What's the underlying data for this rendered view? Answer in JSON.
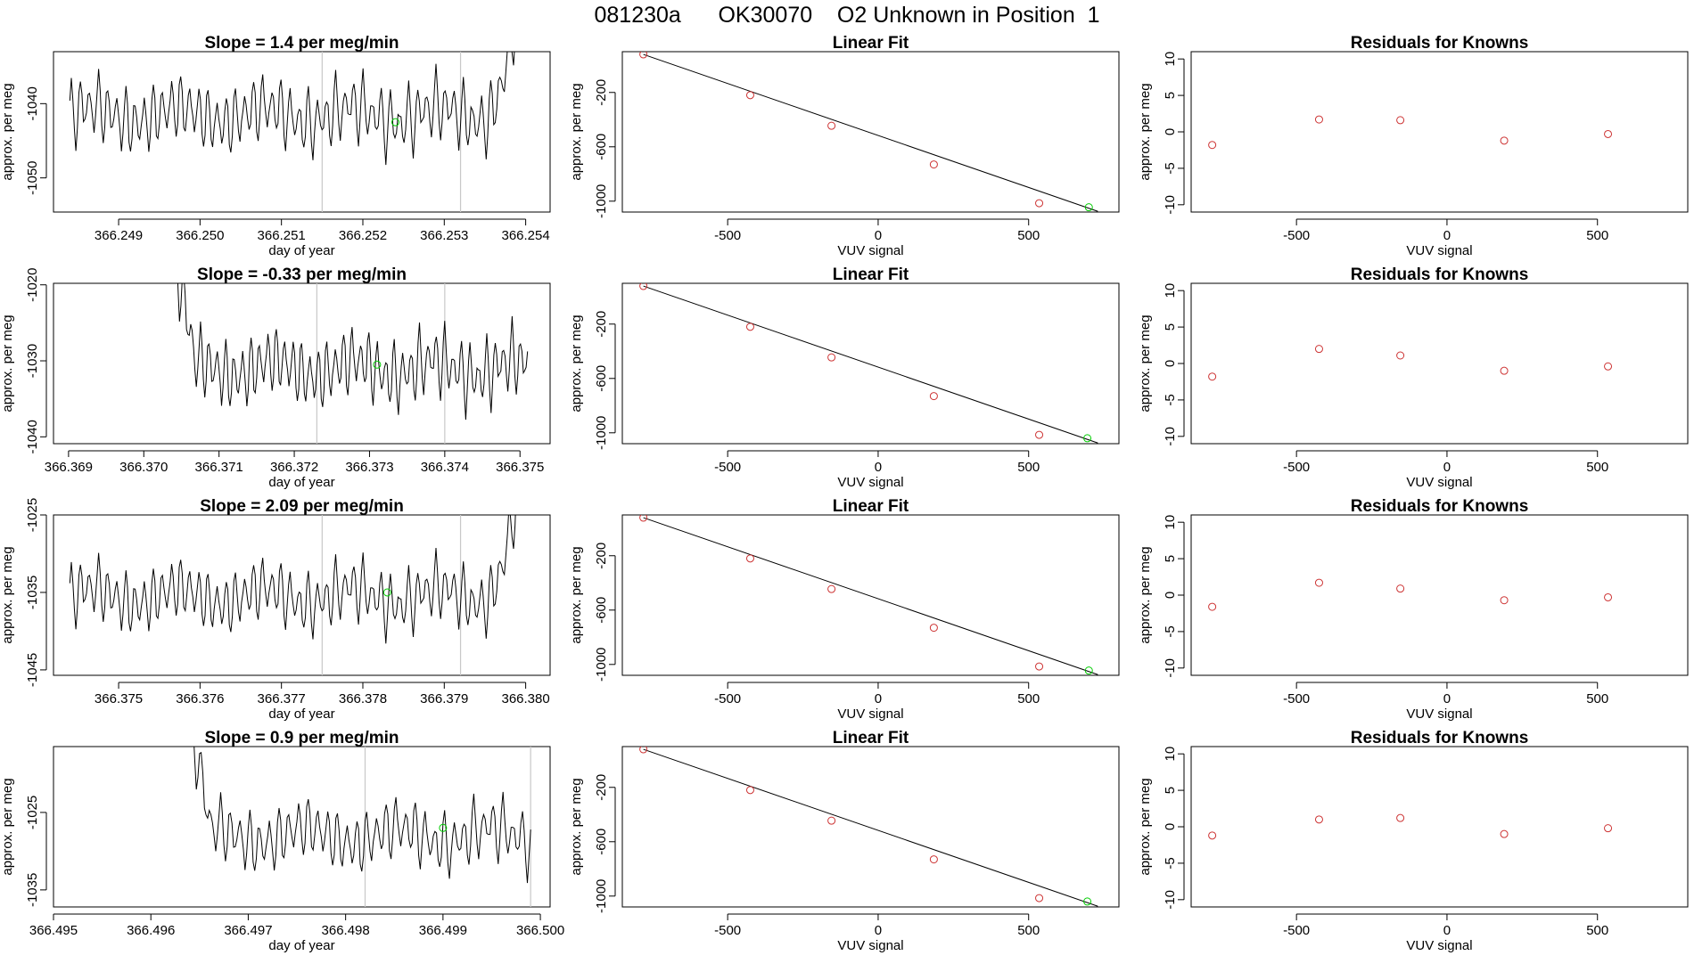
{
  "page_title": "081230a      OK30070    O2 Unknown in Position  1",
  "colors": {
    "trace": "#000000",
    "known": "#cd3333",
    "unknown": "#00cc00",
    "marker": "#c8c8c8"
  },
  "chart_data": [
    {
      "type": "line",
      "title": "Slope =  1.4  per meg/min",
      "xlabel": "day of year",
      "ylabel": "approx. per meg",
      "xlim": [
        366.2482,
        366.2543
      ],
      "ylim": [
        -1054.6,
        -1033.0
      ],
      "xticks": [
        "366.249",
        "366.250",
        "366.251",
        "366.252",
        "366.253",
        "366.254"
      ],
      "yticks": [
        "-1040",
        "-1050"
      ],
      "trace": {
        "x_start": 366.2484,
        "x_end": 366.254,
        "base": -1041.5,
        "amplitude": 4.5,
        "periods": 50,
        "tail_rise": 10
      },
      "markers_x": [
        366.2515,
        366.2532
      ],
      "unknown_point": {
        "x": 366.2524,
        "y": -1042.5
      }
    },
    {
      "type": "line",
      "title": "Slope =  -0.33  per meg/min",
      "xlabel": "day of year",
      "ylabel": "approx. per meg",
      "xlim": [
        366.3688,
        366.3754
      ],
      "ylim": [
        -1040.9,
        -1019.8
      ],
      "xticks": [
        "366.369",
        "366.370",
        "366.371",
        "366.372",
        "366.373",
        "366.374",
        "366.375"
      ],
      "yticks": [
        "-1020",
        "-1030",
        "-1040"
      ],
      "trace": {
        "x_start": 366.3704,
        "x_end": 366.3751,
        "base": -1031.0,
        "amplitude": 4.5,
        "periods": 42,
        "head_spike": 10
      },
      "markers_x": [
        366.3723,
        366.374
      ],
      "unknown_point": {
        "x": 366.3731,
        "y": -1030.5
      }
    },
    {
      "type": "line",
      "title": "Slope =  2.09  per meg/min",
      "xlabel": "day of year",
      "ylabel": "approx. per meg",
      "xlim": [
        366.3742,
        366.3803
      ],
      "ylim": [
        -1045.7,
        -1025.0
      ],
      "xticks": [
        "366.375",
        "366.376",
        "366.377",
        "366.378",
        "366.379",
        "366.380"
      ],
      "yticks": [
        "-1025",
        "-1035",
        "-1045"
      ],
      "trace": {
        "x_start": 366.3744,
        "x_end": 366.38,
        "base": -1035.5,
        "amplitude": 4.0,
        "periods": 50,
        "tail_rise": 9
      },
      "markers_x": [
        366.3775,
        366.3792
      ],
      "unknown_point": {
        "x": 366.3783,
        "y": -1035.0
      }
    },
    {
      "type": "line",
      "title": "Slope =  0.9  per meg/min",
      "xlabel": "day of year",
      "ylabel": "approx. per meg",
      "xlim": [
        366.495,
        366.5001
      ],
      "ylim": [
        -1037.2,
        -1016.5
      ],
      "xticks": [
        "366.495",
        "366.496",
        "366.497",
        "366.498",
        "366.499",
        "366.500"
      ],
      "yticks": [
        "-1025",
        "-1035"
      ],
      "trace": {
        "x_start": 366.4964,
        "x_end": 366.4999,
        "base": -1028.0,
        "amplitude": 4.0,
        "periods": 35,
        "head_spike": 10
      },
      "markers_x": [
        366.4982,
        366.4999
      ],
      "unknown_point": {
        "x": 366.499,
        "y": -1027.0
      }
    },
    {
      "type": "scatter",
      "title": "Linear Fit",
      "xlabel": "VUV signal",
      "ylabel": "approx. per meg",
      "xlim": [
        -850,
        800
      ],
      "ylim": [
        -1080,
        100
      ],
      "xticks": [
        -500,
        0,
        500
      ],
      "yticks": [
        -200,
        -600,
        -1000
      ],
      "knowns": [
        [
          -780,
          80
        ],
        [
          -425,
          -220
        ],
        [
          -155,
          -445
        ],
        [
          185,
          -730
        ],
        [
          535,
          -1015
        ]
      ],
      "unknown": [
        700,
        -1045
      ],
      "fit_line": [
        [
          -780,
          80
        ],
        [
          730,
          -1075
        ]
      ]
    },
    {
      "type": "scatter",
      "title": "Linear Fit",
      "xlabel": "VUV signal",
      "ylabel": "approx. per meg",
      "xlim": [
        -850,
        800
      ],
      "ylim": [
        -1080,
        100
      ],
      "xticks": [
        -500,
        0,
        500
      ],
      "yticks": [
        -200,
        -600,
        -1000
      ],
      "knowns": [
        [
          -780,
          80
        ],
        [
          -425,
          -220
        ],
        [
          -155,
          -445
        ],
        [
          185,
          -730
        ],
        [
          535,
          -1015
        ]
      ],
      "unknown": [
        695,
        -1040
      ],
      "fit_line": [
        [
          -780,
          80
        ],
        [
          730,
          -1075
        ]
      ]
    },
    {
      "type": "scatter",
      "title": "Linear Fit",
      "xlabel": "VUV signal",
      "ylabel": "approx. per meg",
      "xlim": [
        -850,
        800
      ],
      "ylim": [
        -1080,
        100
      ],
      "xticks": [
        -500,
        0,
        500
      ],
      "yticks": [
        -200,
        -600,
        -1000
      ],
      "knowns": [
        [
          -780,
          80
        ],
        [
          -425,
          -220
        ],
        [
          -155,
          -445
        ],
        [
          185,
          -730
        ],
        [
          535,
          -1015
        ]
      ],
      "unknown": [
        700,
        -1045
      ],
      "fit_line": [
        [
          -780,
          80
        ],
        [
          730,
          -1075
        ]
      ]
    },
    {
      "type": "scatter",
      "title": "Linear Fit",
      "xlabel": "VUV signal",
      "ylabel": "approx. per meg",
      "xlim": [
        -850,
        800
      ],
      "ylim": [
        -1080,
        100
      ],
      "xticks": [
        -500,
        0,
        500
      ],
      "yticks": [
        -200,
        -600,
        -1000
      ],
      "knowns": [
        [
          -780,
          80
        ],
        [
          -425,
          -220
        ],
        [
          -155,
          -445
        ],
        [
          185,
          -730
        ],
        [
          535,
          -1015
        ]
      ],
      "unknown": [
        695,
        -1040
      ],
      "fit_line": [
        [
          -780,
          80
        ],
        [
          730,
          -1075
        ]
      ]
    },
    {
      "type": "scatter",
      "title": "Residuals for Knowns",
      "xlabel": "VUV signal",
      "ylabel": "approx. per meg",
      "xlim": [
        -850,
        800
      ],
      "ylim": [
        -11,
        11
      ],
      "xticks": [
        -500,
        0,
        500
      ],
      "yticks": [
        10,
        5,
        0,
        -5,
        -10
      ],
      "points": [
        [
          -780,
          -1.8
        ],
        [
          -425,
          1.7
        ],
        [
          -155,
          1.6
        ],
        [
          190,
          -1.2
        ],
        [
          535,
          -0.3
        ]
      ]
    },
    {
      "type": "scatter",
      "title": "Residuals for Knowns",
      "xlabel": "VUV signal",
      "ylabel": "approx. per meg",
      "xlim": [
        -850,
        800
      ],
      "ylim": [
        -11,
        11
      ],
      "xticks": [
        -500,
        0,
        500
      ],
      "yticks": [
        10,
        5,
        0,
        -5,
        -10
      ],
      "points": [
        [
          -780,
          -1.8
        ],
        [
          -425,
          2.0
        ],
        [
          -155,
          1.1
        ],
        [
          190,
          -1.0
        ],
        [
          535,
          -0.4
        ]
      ]
    },
    {
      "type": "scatter",
      "title": "Residuals for Knowns",
      "xlabel": "VUV signal",
      "ylabel": "approx. per meg",
      "xlim": [
        -850,
        800
      ],
      "ylim": [
        -11,
        11
      ],
      "xticks": [
        -500,
        0,
        500
      ],
      "yticks": [
        10,
        5,
        0,
        -5,
        -10
      ],
      "points": [
        [
          -780,
          -1.6
        ],
        [
          -425,
          1.7
        ],
        [
          -155,
          0.9
        ],
        [
          190,
          -0.7
        ],
        [
          535,
          -0.3
        ]
      ]
    },
    {
      "type": "scatter",
      "title": "Residuals for Knowns",
      "xlabel": "VUV signal",
      "ylabel": "approx. per meg",
      "xlim": [
        -850,
        800
      ],
      "ylim": [
        -11,
        11
      ],
      "xticks": [
        -500,
        0,
        500
      ],
      "yticks": [
        10,
        5,
        0,
        -5,
        -10
      ],
      "points": [
        [
          -780,
          -1.2
        ],
        [
          -425,
          1.0
        ],
        [
          -155,
          1.2
        ],
        [
          190,
          -1.0
        ],
        [
          535,
          -0.2
        ]
      ]
    }
  ]
}
